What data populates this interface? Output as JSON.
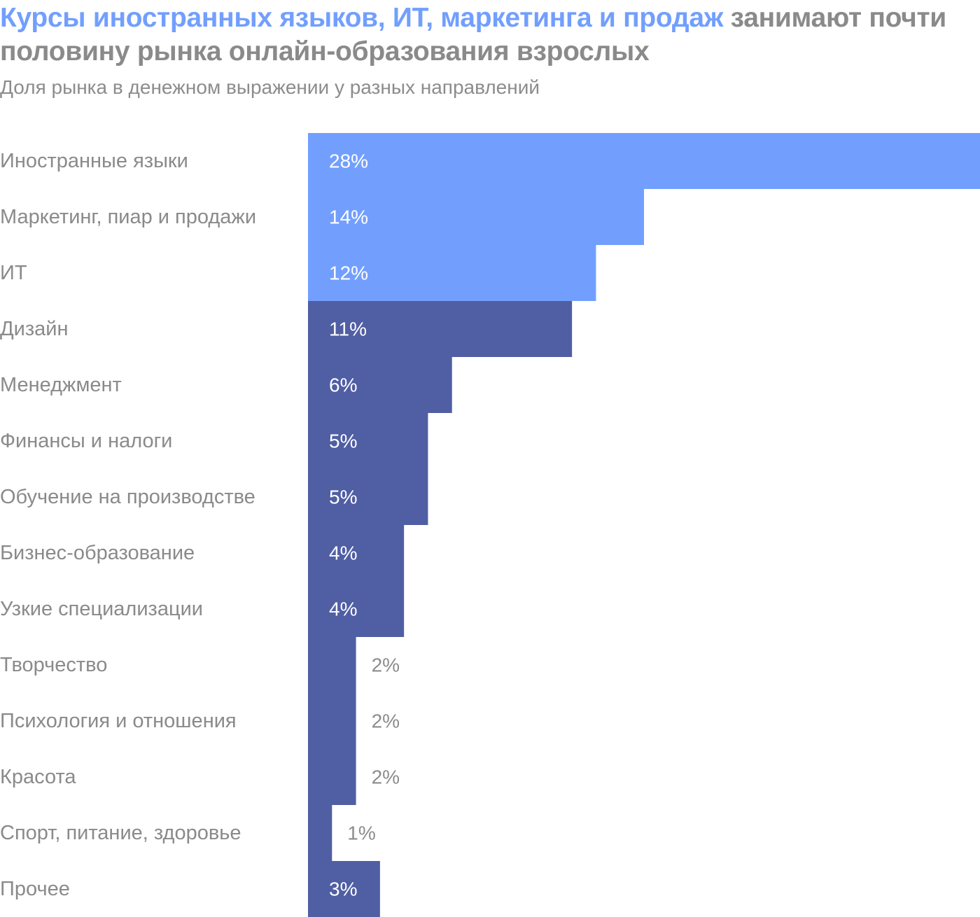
{
  "header": {
    "title_highlight": "Курсы иностранных языков, ИТ, маркетинга и продаж",
    "title_rest": " занимают почти половину рынка онлайн-образования взрослых",
    "subtitle": "Доля рынка в денежном выражении у разных направлений"
  },
  "colors": {
    "highlight": "#729ffe",
    "base": "#505ea3",
    "label_inside": "#ffffff",
    "label_outside": "#8c8c8c",
    "text": "#8a8a8a"
  },
  "chart_data": {
    "type": "bar",
    "orientation": "horizontal",
    "categories": [
      "Иностранные языки",
      "Маркетинг, пиар и продажи",
      "ИТ",
      "Дизайн",
      "Менеджмент",
      "Финансы и налоги",
      "Обучение на производстве",
      "Бизнес-образование",
      "Узкие специализации",
      "Творчество",
      "Психология и отношения",
      "Красота",
      "Спорт, питание, здоровье",
      "Прочее"
    ],
    "values": [
      28,
      14,
      12,
      11,
      6,
      5,
      5,
      4,
      4,
      2,
      2,
      2,
      1,
      3
    ],
    "value_labels": [
      "28%",
      "14%",
      "12%",
      "11%",
      "6%",
      "5%",
      "5%",
      "4%",
      "4%",
      "2%",
      "2%",
      "2%",
      "1%",
      "3%"
    ],
    "highlighted": [
      true,
      true,
      true,
      false,
      false,
      false,
      false,
      false,
      false,
      false,
      false,
      false,
      false,
      false
    ],
    "unit": "%",
    "xlim": [
      0,
      28
    ],
    "grid": false,
    "legend": "none"
  }
}
